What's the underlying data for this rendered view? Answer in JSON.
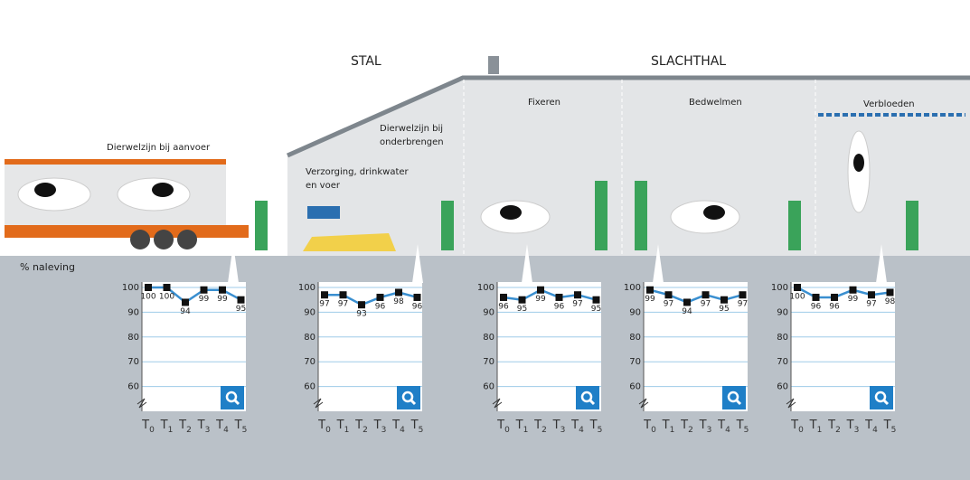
{
  "scene": {
    "stal": "STAL",
    "slachthal": "SLACHTHAL",
    "aanvoer": "Dierwelzijn bij aanvoer",
    "onderbrengen": [
      "Dierwelzijn bij",
      "onderbrengen"
    ],
    "verzorging": [
      "Verzorging, drinkwater",
      "en voer"
    ],
    "fixeren": "Fixeren",
    "bedwelmen": "Bedwelmen",
    "verbloeden": "Verbloeden",
    "y_label": "% naleving"
  },
  "chart_data": [
    {
      "type": "line",
      "categories": [
        "T0",
        "T1",
        "T2",
        "T3",
        "T4",
        "T5"
      ],
      "values": [
        100,
        100,
        94,
        99,
        99,
        95
      ],
      "color": "#3a8fd0",
      "marker_color": "#111111",
      "ylim": [
        50,
        100
      ],
      "yticks": [
        60,
        70,
        80,
        90,
        100
      ],
      "grid": true
    },
    {
      "type": "line",
      "categories": [
        "T0",
        "T1",
        "T2",
        "T3",
        "T4",
        "T5"
      ],
      "values": [
        97,
        97,
        93,
        96,
        98,
        96
      ],
      "color": "#3a8fd0",
      "marker_color": "#111111",
      "ylim": [
        50,
        100
      ],
      "yticks": [
        60,
        70,
        80,
        90,
        100
      ],
      "grid": true
    },
    {
      "type": "line",
      "categories": [
        "T0",
        "T1",
        "T2",
        "T3",
        "T4",
        "T5"
      ],
      "values": [
        96,
        95,
        99,
        96,
        97,
        95
      ],
      "color": "#3a8fd0",
      "marker_color": "#111111",
      "ylim": [
        50,
        100
      ],
      "yticks": [
        60,
        70,
        80,
        90,
        100
      ],
      "grid": true
    },
    {
      "type": "line",
      "categories": [
        "T0",
        "T1",
        "T2",
        "T3",
        "T4",
        "T5"
      ],
      "values": [
        99,
        97,
        94,
        97,
        95,
        97
      ],
      "color": "#3a8fd0",
      "marker_color": "#111111",
      "ylim": [
        50,
        100
      ],
      "yticks": [
        60,
        70,
        80,
        90,
        100
      ],
      "grid": true
    },
    {
      "type": "line",
      "categories": [
        "T0",
        "T1",
        "T2",
        "T3",
        "T4",
        "T5"
      ],
      "values": [
        100,
        96,
        96,
        99,
        97,
        98
      ],
      "color": "#3a8fd0",
      "marker_color": "#111111",
      "ylim": [
        50,
        100
      ],
      "yticks": [
        60,
        70,
        80,
        90,
        100
      ],
      "grid": true
    }
  ]
}
